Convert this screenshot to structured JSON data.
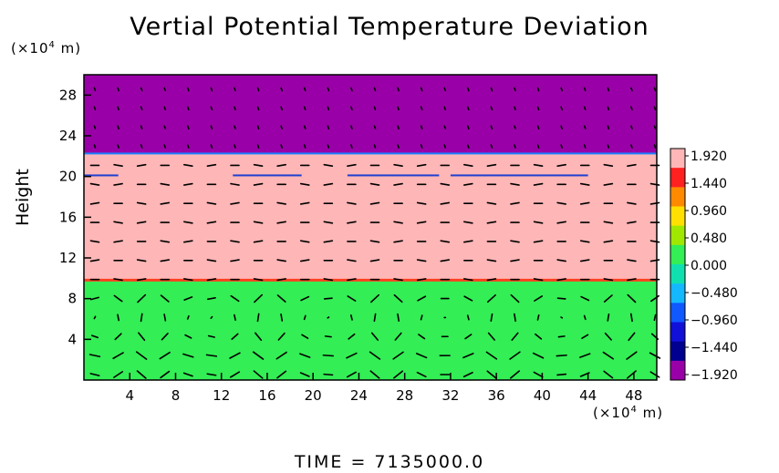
{
  "chart_data": {
    "type": "heatmap",
    "title": "Vertial Potential Temperature Deviation",
    "ylabel": "Height",
    "xlabel": "",
    "x_unit": {
      "prefix": "(×10",
      "exp": "4",
      "suffix": " m)"
    },
    "y_unit": {
      "prefix": "(×10",
      "exp": "4",
      "suffix": " m)"
    },
    "x_ticks": [
      4,
      8,
      12,
      16,
      20,
      24,
      28,
      32,
      36,
      40,
      44,
      48
    ],
    "y_ticks": [
      4,
      8,
      12,
      16,
      20,
      24,
      28
    ],
    "xlim": [
      0,
      50
    ],
    "ylim": [
      0,
      30
    ],
    "layers": [
      {
        "name": "lower",
        "y_range": [
          0,
          9.8
        ],
        "color": "#33ee55",
        "approx_value": 0.2
      },
      {
        "name": "middle",
        "y_range": [
          9.8,
          22.3
        ],
        "color": "#ffb6b6",
        "approx_value": 1.92
      },
      {
        "name": "upper",
        "y_range": [
          22.3,
          30
        ],
        "color": "#9a00a8",
        "approx_value": -1.92
      }
    ],
    "colorbar": {
      "values": [
        "1.920",
        "1.440",
        "0.960",
        "0.480",
        "0.000",
        "−0.480",
        "−0.960",
        "−1.440",
        "−1.920"
      ],
      "min": -1.92,
      "max": 1.92,
      "colors": [
        "#ffb6b6",
        "#ff2020",
        "#ff8a00",
        "#ffe000",
        "#a0e800",
        "#33ee55",
        "#10e0b0",
        "#14b8ff",
        "#1058ff",
        "#1010d8",
        "#000090",
        "#9a00a8"
      ]
    },
    "vector_field": {
      "description_free": true,
      "x_columns": 25,
      "y_rows": 16
    }
  },
  "footer": {
    "time_label": "TIME  =  7135000.0"
  }
}
